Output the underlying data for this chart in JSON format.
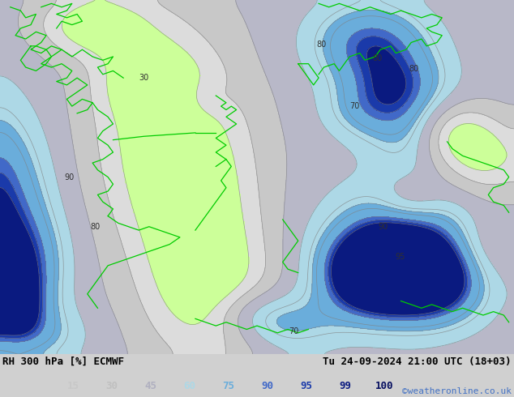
{
  "title_left": "RH 300 hPa [%] ECMWF",
  "title_right": "Tu 24-09-2024 21:00 UTC (18+03)",
  "credit": "©weatheronline.co.uk",
  "colorbar_levels": [
    15,
    30,
    45,
    60,
    75,
    90,
    95,
    99,
    100
  ],
  "fill_levels": [
    0,
    15,
    30,
    45,
    60,
    75,
    90,
    95,
    99,
    101
  ],
  "fill_colors": [
    "#f5f5f5",
    "#dcdcdc",
    "#c8c8c8",
    "#b8b8c8",
    "#add8e6",
    "#6aaddb",
    "#4169c8",
    "#1a3aaa",
    "#0a1a80"
  ],
  "legend_colors": [
    "#c8c8c8",
    "#c0c0c0",
    "#b0b0c0",
    "#add8e6",
    "#6aaddb",
    "#4169c8",
    "#1a3aaa",
    "#0a1a80",
    "#060f60"
  ],
  "contour_levels": [
    15,
    30,
    45,
    60,
    70,
    75,
    80,
    90,
    95,
    99
  ],
  "contour_color": "#808080",
  "green_color": "#00cc00",
  "bg_color": "#d0d0d0",
  "lime_color": "#ccff99",
  "figsize": [
    6.34,
    4.9
  ],
  "dpi": 100
}
